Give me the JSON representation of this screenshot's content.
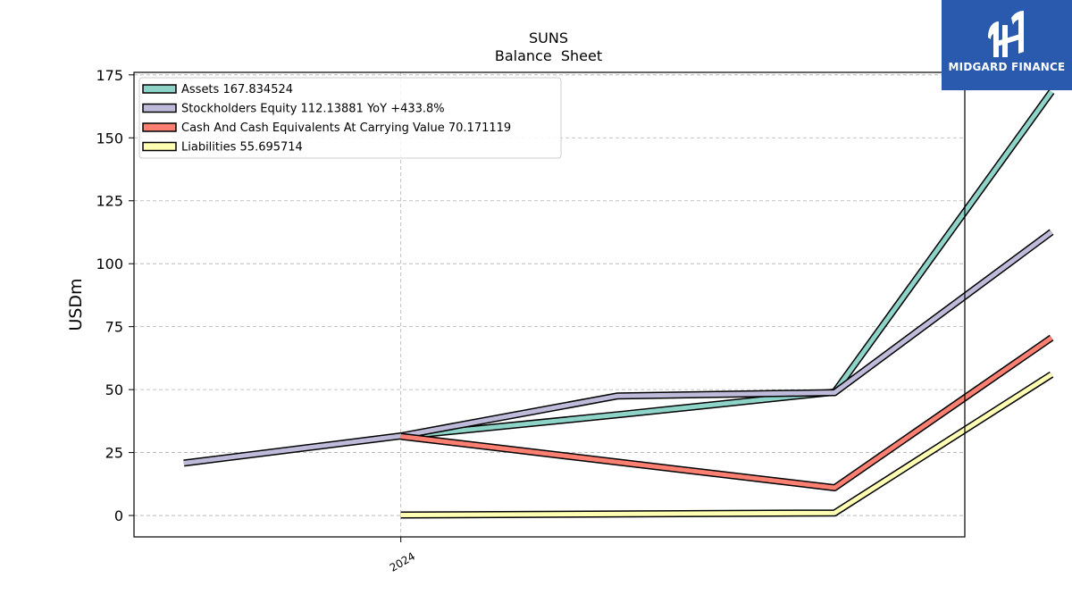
{
  "brand": {
    "name": "MIDGARD FINANCE",
    "bg_color": "#2a5aad"
  },
  "chart_data": {
    "type": "line",
    "title": "SUNS",
    "subtitle": "Balance  Sheet",
    "ylabel": "USDm",
    "xlabel": "",
    "ylim": [
      -8.5,
      176
    ],
    "y_ticks": [
      0,
      25,
      50,
      75,
      100,
      125,
      150,
      175
    ],
    "x_tick_labels": [
      {
        "x": 1,
        "label": "2024"
      }
    ],
    "xlim": [
      -0.23,
      3.6
    ],
    "grid": true,
    "legend_position": "top-left",
    "series": [
      {
        "name": "Assets  167.834524",
        "color": "#8dd3c7",
        "points": [
          [
            1,
            31.4
          ],
          [
            2,
            40.0
          ],
          [
            3,
            49.0
          ],
          [
            4,
            168.3
          ]
        ]
      },
      {
        "name": "Stockholders Equity  112.13881 YoY +433.8%",
        "color": "#bebada",
        "points": [
          [
            0,
            20.8
          ],
          [
            1,
            31.6
          ],
          [
            2,
            47.5
          ],
          [
            3,
            48.8
          ],
          [
            4,
            112.6
          ]
        ]
      },
      {
        "name": "Cash And Cash Equivalents At Carrying Value  70.171119",
        "color": "#fb8072",
        "points": [
          [
            1,
            31.4
          ],
          [
            3,
            11.0
          ],
          [
            4,
            70.6
          ]
        ]
      },
      {
        "name": "Liabilities  55.695714",
        "color": "#ffffb3",
        "points": [
          [
            1,
            0.2
          ],
          [
            3,
            1.0
          ],
          [
            4,
            56.0
          ]
        ]
      }
    ]
  }
}
